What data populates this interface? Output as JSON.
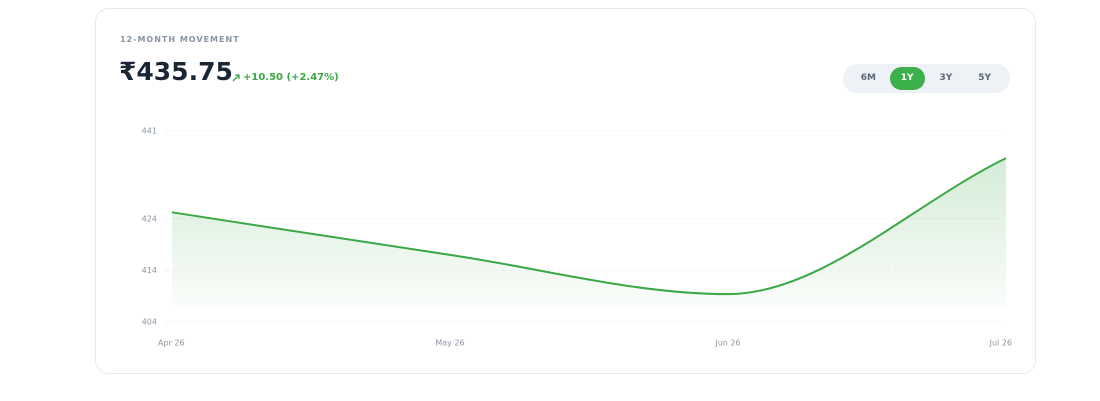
{
  "header": {
    "label": "12-MONTH MOVEMENT",
    "price": "₹435.75",
    "change": "+10.50 (+2.47%)"
  },
  "range_buttons": {
    "options": [
      "6M",
      "1Y",
      "3Y",
      "5Y"
    ],
    "selected": "1Y"
  },
  "chart_data": {
    "type": "line",
    "categories": [
      "Apr 26",
      "May 26",
      "Jun 26",
      "Jul 26"
    ],
    "values": [
      425.25,
      417.0,
      409.4,
      435.75
    ],
    "color": "#3aa845",
    "ylim": [
      404,
      441
    ],
    "yticks": [
      404,
      414,
      424,
      441
    ],
    "grid": true
  }
}
